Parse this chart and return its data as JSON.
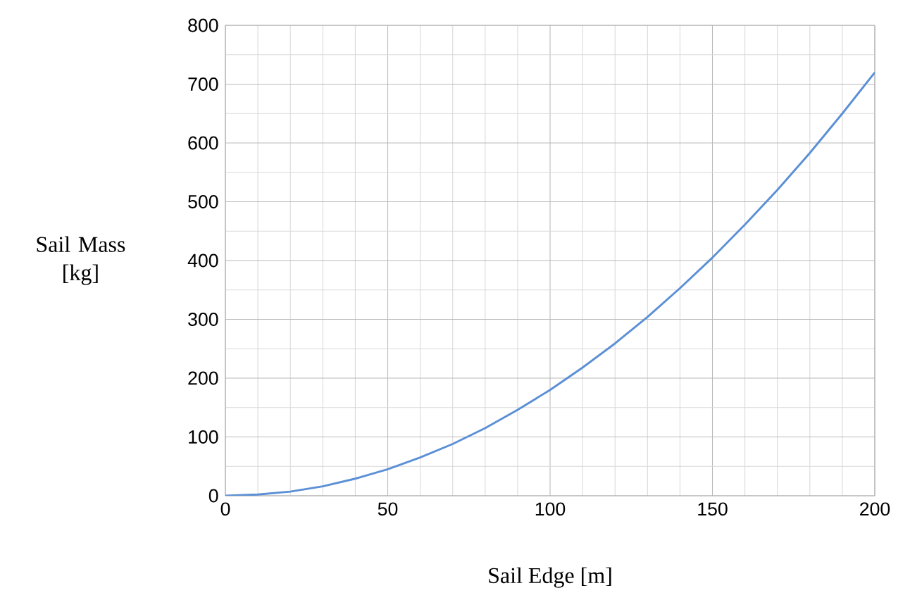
{
  "chart_data": {
    "type": "line",
    "xlabel": "Sail Edge [m]",
    "ylabel": "Sail Mass [kg]",
    "x": [
      0,
      10,
      20,
      30,
      40,
      50,
      60,
      70,
      80,
      90,
      100,
      110,
      120,
      130,
      140,
      150,
      160,
      170,
      180,
      190,
      200
    ],
    "series": [
      {
        "color": "#5b8fd6",
        "values": [
          0,
          2,
          7,
          16,
          29,
          45,
          65,
          88,
          115,
          146,
          180,
          218,
          259,
          304,
          353,
          405,
          461,
          520,
          583,
          650,
          720
        ]
      }
    ],
    "xlim": [
      0,
      200
    ],
    "ylim": [
      0,
      800
    ],
    "xticks": [
      0,
      50,
      100,
      150,
      200
    ],
    "yticks": [
      0,
      100,
      200,
      300,
      400,
      500,
      600,
      700,
      800
    ],
    "grid": true,
    "marker": "none",
    "line_style": "solid"
  }
}
